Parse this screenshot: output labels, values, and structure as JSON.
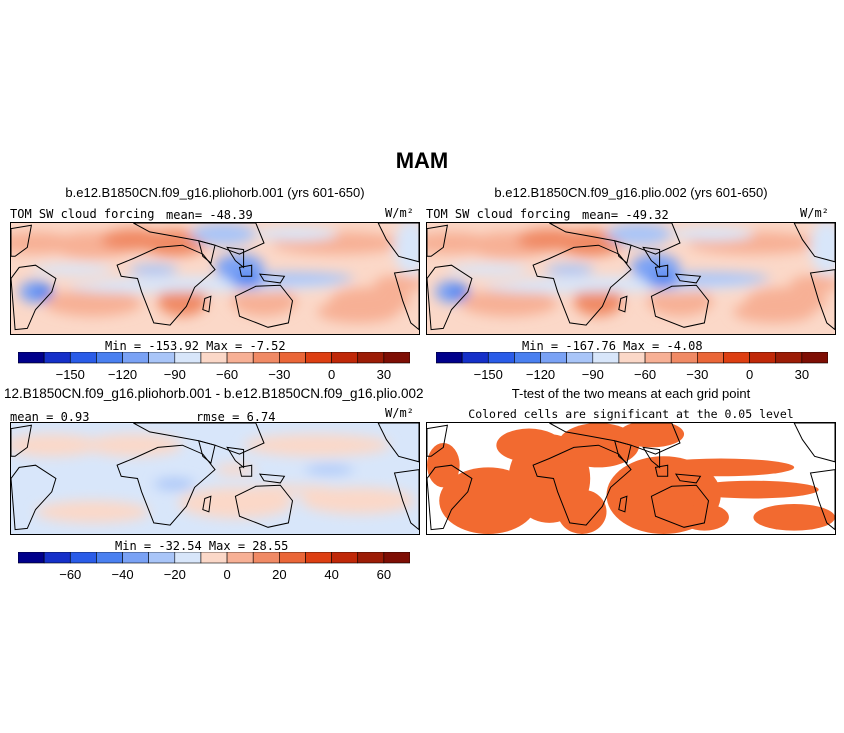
{
  "page_title": "MAM",
  "chart_data": [
    {
      "type": "heatmap",
      "title": "b.e12.B1850CN.f09_g16.pliohorb.001 (yrs 601-650)",
      "left_label": "TOM SW cloud forcing",
      "mean_label": "mean= -48.39",
      "units": "W/m²",
      "min_max": "Min = -153.92  Max =   -7.52",
      "colorbar_ticks": [
        "−150",
        "−120",
        "−90",
        "−60",
        "−30",
        "0",
        "30"
      ],
      "colorbar_colors": [
        "#00008b",
        "#1530c9",
        "#2a5ce8",
        "#4a80f0",
        "#7aa2f5",
        "#a9c5f8",
        "#d8e6fa",
        "#fbd8c8",
        "#f7b095",
        "#f08a65",
        "#ea6638",
        "#dd3f12",
        "#c02808",
        "#9c1c06",
        "#7e0e04"
      ],
      "map_style": "mostly-negative"
    },
    {
      "type": "heatmap",
      "title": "b.e12.B1850CN.f09_g16.plio.002 (yrs 601-650)",
      "left_label": "TOM SW cloud forcing",
      "mean_label": "mean= -49.32",
      "units": "W/m²",
      "min_max": "Min = -167.76  Max =   -4.08",
      "colorbar_ticks": [
        "−150",
        "−120",
        "−90",
        "−60",
        "−30",
        "0",
        "30"
      ],
      "colorbar_colors": [
        "#00008b",
        "#1530c9",
        "#2a5ce8",
        "#4a80f0",
        "#7aa2f5",
        "#a9c5f8",
        "#d8e6fa",
        "#fbd8c8",
        "#f7b095",
        "#f08a65",
        "#ea6638",
        "#dd3f12",
        "#c02808",
        "#9c1c06",
        "#7e0e04"
      ],
      "map_style": "mostly-negative"
    },
    {
      "type": "heatmap",
      "title": "12.B1850CN.f09_g16.pliohorb.001 - b.e12.B1850CN.f09_g16.plio.002",
      "mean_label": "mean =   0.93",
      "rmse_label": "rmse =   6.74",
      "units": "W/m²",
      "min_max": "Min = -32.54  Max =  28.55",
      "colorbar_ticks": [
        "−60",
        "−40",
        "−20",
        "0",
        "20",
        "40",
        "60"
      ],
      "colorbar_colors": [
        "#00008b",
        "#1530c9",
        "#2a5ce8",
        "#4a80f0",
        "#7aa2f5",
        "#a9c5f8",
        "#d8e6fa",
        "#fbd8c8",
        "#f7b095",
        "#f08a65",
        "#ea6638",
        "#dd3f12",
        "#c02808",
        "#9c1c06",
        "#7e0e04"
      ],
      "map_style": "difference"
    },
    {
      "type": "heatmap",
      "title": "T-test of the two means at each grid point",
      "subtitle": "Colored cells are significant at the 0.05 level",
      "significant_color": "#f26a30",
      "map_style": "significance"
    }
  ]
}
